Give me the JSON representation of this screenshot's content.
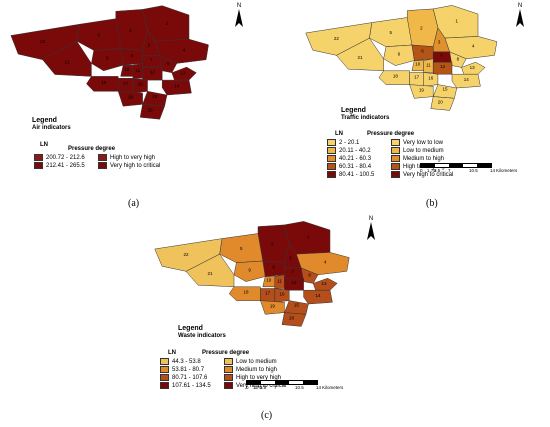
{
  "panels": [
    {
      "caption": "(a)",
      "legend_title": "Legend",
      "legend_subtitle": "Air indicators",
      "col_ln": "LN",
      "col_pressure": "Pressure degree",
      "rows": [
        {
          "range": "200.72 - 212.6",
          "degree": "High to very high",
          "color": "#8b1a1a"
        },
        {
          "range": "212.41 - 265.5",
          "degree": "Very high to critical",
          "color": "#7a0a0a"
        }
      ],
      "zone_labels": [
        "1",
        "2",
        "3",
        "4",
        "5",
        "6",
        "7",
        "8",
        "9",
        "10",
        "11",
        "12",
        "13",
        "14",
        "15",
        "16",
        "17",
        "18",
        "19",
        "20",
        "21",
        "22"
      ],
      "north": "N",
      "scale_ticks": [
        "0",
        "1.75",
        "3.5",
        "7",
        "10.5",
        "14"
      ],
      "scale_unit": "Kilometers"
    },
    {
      "caption": "(b)",
      "legend_title": "Legend",
      "legend_subtitle": "Traffic indicators",
      "col_ln": "LN",
      "col_pressure": "Pressure degree",
      "rows": [
        {
          "range": "2 - 20.1",
          "degree": "Very low to low",
          "color": "#f6d26a"
        },
        {
          "range": "20.11 - 40.2",
          "degree": "Low to medium",
          "color": "#f0b848"
        },
        {
          "range": "40.21 - 60.3",
          "degree": "Medium to high",
          "color": "#e0902c"
        },
        {
          "range": "60.31 - 80.4",
          "degree": "High to very high",
          "color": "#b45416"
        },
        {
          "range": "80.41 - 100.5",
          "degree": "Very high to critical",
          "color": "#7a0a0a"
        }
      ],
      "zone_labels": [
        "1",
        "2",
        "3",
        "4",
        "5",
        "6",
        "7",
        "8",
        "9",
        "10",
        "11",
        "12",
        "13",
        "14",
        "15",
        "16",
        "17",
        "18",
        "19",
        "20",
        "21",
        "22"
      ],
      "north": "N",
      "scale_ticks": [
        "0",
        "1.75",
        "3.5",
        "7",
        "10.5",
        "14"
      ],
      "scale_unit": "Kilometers"
    },
    {
      "caption": "(c)",
      "legend_title": "Legend",
      "legend_subtitle": "Waste indicators",
      "col_ln": "LN",
      "col_pressure": "Pressure degree",
      "rows": [
        {
          "range": "44.3 - 53.8",
          "degree": "Low to medium",
          "color": "#f0c25c"
        },
        {
          "range": "53.81 - 80.7",
          "degree": "Medium to high",
          "color": "#e08a2c"
        },
        {
          "range": "80.71 - 107.6",
          "degree": "High to very high",
          "color": "#b44e1a"
        },
        {
          "range": "107.61 - 134.5",
          "degree": "Very high to critical",
          "color": "#7a0a0a"
        }
      ],
      "zone_labels": [
        "1",
        "2",
        "3",
        "4",
        "5",
        "6",
        "7",
        "8",
        "9",
        "10",
        "11",
        "12",
        "13",
        "14",
        "15",
        "16",
        "17",
        "18",
        "19",
        "20",
        "21",
        "22"
      ],
      "north": "N",
      "scale_ticks": [
        "0",
        "1.75",
        "3.5",
        "7",
        "10.5",
        "14"
      ],
      "scale_unit": "Kilometers"
    }
  ],
  "zone_fill": {
    "a": [
      "#7a0a0a",
      "#7a0a0a",
      "#7a0a0a",
      "#7a0a0a",
      "#7a0a0a",
      "#7a0a0a",
      "#7a0a0a",
      "#7a0a0a",
      "#7a0a0a",
      "#7a0a0a",
      "#7a0a0a",
      "#7a0a0a",
      "#7a0a0a",
      "#7a0a0a",
      "#7a0a0a",
      "#7a0a0a",
      "#7a0a0a",
      "#7a0a0a",
      "#7a0a0a",
      "#7a0a0a",
      "#7a0a0a",
      "#7a0a0a"
    ],
    "b": [
      "#f6d26a",
      "#f0b848",
      "#e0902c",
      "#f6d26a",
      "#f6d26a",
      "#b45416",
      "#7a0a0a",
      "#f6d26a",
      "#f6d26a",
      "#f0b848",
      "#f0b848",
      "#b45416",
      "#f6d26a",
      "#f6d26a",
      "#f6d26a",
      "#f6d26a",
      "#f6d26a",
      "#f6d26a",
      "#f6d26a",
      "#f6d26a",
      "#f6d26a",
      "#f6d26a"
    ],
    "c": [
      "#7a0a0a",
      "#7a0a0a",
      "#7a0a0a",
      "#e08a2c",
      "#e08a2c",
      "#7a0a0a",
      "#7a0a0a",
      "#b44e1a",
      "#e08a2c",
      "#e08a2c",
      "#b44e1a",
      "#7a0a0a",
      "#b44e1a",
      "#b44e1a",
      "#b44e1a",
      "#b44e1a",
      "#b44e1a",
      "#e08a2c",
      "#e08a2c",
      "#b44e1a",
      "#f0c25c",
      "#f0c25c"
    ]
  }
}
